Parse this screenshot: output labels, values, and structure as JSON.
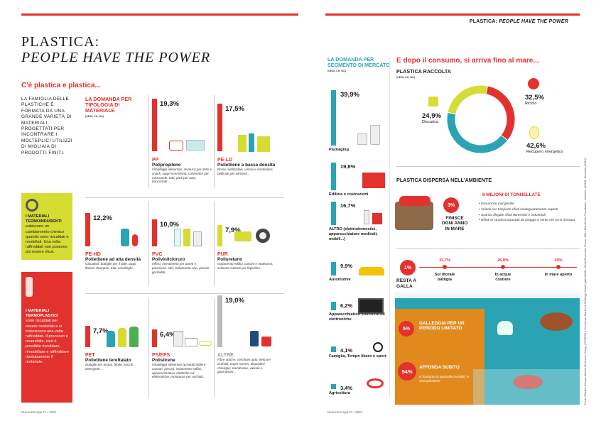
{
  "header": {
    "section_label": "PLASTICA: ",
    "section_label_it": "PEOPLE HAVE THE POWER"
  },
  "title": {
    "line1": "PLASTICA:",
    "line2": "PEOPLE HAVE THE POWER"
  },
  "subtitle_left": "C'è plastica e plastica...",
  "intro_text": "LA FAMIGLIA DELLE PLASTICHE È FORMATA DA UNA GRANDE VARIETÀ DI MATERIALI, PROGETTATI PER INCONTRARE I MOLTEPLICI UTILIZZI DI MIGLIAIA DI PRODOTTI FINITI.",
  "box_thermoset": {
    "bold": "I MATERIALI TERMOINDURENTI",
    "text": "subiscono un cambiamento chimico quando sono riscaldati e modellati. Una volta raffreddati non possono più essere rifusi."
  },
  "box_thermoplastic": {
    "bold": "I MATERIALI TERMOPLASTICI",
    "text": "sono riscaldati per essere modellati e si induriscono una volta raffreddati. Il processo è reversibile, cioè è possibile riscaldare, rimodellare e raffreddare ripetutamente il materiale."
  },
  "demand_by_material": {
    "heading": "LA DOMANDA PER TIPOLOGIA DI MATERIALE",
    "note": "(UE28, CH, NO)",
    "items": [
      {
        "pct": "19,3%",
        "value": 19.3,
        "code": "PP",
        "name": "Polipropilene",
        "desc": "Imballaggi alimentari, involucri per dolci e snack, tappi incernierati, contenitori per microonde, tubi, parti per auto, banconote..."
      },
      {
        "pct": "17,5%",
        "value": 17.5,
        "code": "PE-LD",
        "name": "Polietilene a bassa densità",
        "desc": "Borse riutilizzabili, vassoi e contenitori, pellicole per alimenti..."
      },
      {
        "pct": "12,2%",
        "value": 12.2,
        "code": "PE-HD",
        "name": "Polietilene ad alta densità",
        "desc": "Giocattoli, bottiglie per il latte, tappi, flaconi shampoo, tubi, casalinghi..."
      },
      {
        "pct": "10,0%",
        "value": 10.0,
        "code": "PVC",
        "name": "Polivinilcloruro",
        "desc": "Infissi, rivestimenti per pareti e pavimenti, tubi, isolamento cavi, piscine gonfiabili..."
      },
      {
        "pct": "7,9%",
        "value": 7.9,
        "code": "PUR",
        "name": "Poliuretano",
        "desc": "Isolamento edifici, cuscini e materassi, schiume isolanti per frigoriferi..."
      },
      {
        "pct": "7,7%",
        "value": 7.7,
        "code": "PET",
        "name": "Polietilene tereftalato",
        "desc": "Bottiglie per acqua, bibite, succhi, detergenti..."
      },
      {
        "pct": "6,4%",
        "value": 6.4,
        "code": "PS/EPS",
        "name": "Polistirene",
        "desc": "Imballaggi alimentari (prodotti lattiero-caseari, pesce), isolamento edifici, apparecchiature elettriche ed elettroniche, montature per occhiali..."
      },
      {
        "pct": "19,0%",
        "value": 19.0,
        "code": "ALTRE",
        "name": "",
        "desc": "Fibre ottiche, cerchioni auto, lenti per occhiali, touch screen, dispositivi chirurgici, membrane, valvole e guarnizioni..."
      }
    ]
  },
  "demand_by_sector": {
    "heading": "LA DOMANDA PER SEGMENTO DI MERCATO",
    "note": "(UE28, CH, NO)",
    "items": [
      {
        "pct": "39,9%",
        "value": 39.9,
        "label": "Packaging"
      },
      {
        "pct": "19,8%",
        "value": 19.8,
        "label": "Edilizia e costruzioni"
      },
      {
        "pct": "16,7%",
        "value": 16.7,
        "label": "ALTRO (elettrodomestici, apparecchiature medicali, mobili...)"
      },
      {
        "pct": "9,9%",
        "value": 9.9,
        "label": "Automotive"
      },
      {
        "pct": "6,2%",
        "value": 6.2,
        "label": "Apparecchiature elettriche ed elettroniche"
      },
      {
        "pct": "4,1%",
        "value": 4.1,
        "label": "Famiglia, Tempo libero e sport"
      },
      {
        "pct": "3,4%",
        "value": 3.4,
        "label": "Agricoltura"
      }
    ]
  },
  "right": {
    "title": "E dopo il consumo, si arriva fino al mare...",
    "collected": {
      "heading": "PLASTICA RACCOLTA",
      "note": "(UE28, CH, NO)",
      "slices": [
        {
          "label": "Riciclo",
          "pct": "32,5%",
          "value": 32.5,
          "color": "#e3312d"
        },
        {
          "label": "Recupero energetico",
          "pct": "42,6%",
          "value": 42.6,
          "color": "#2aa4b3"
        },
        {
          "label": "Discarica",
          "pct": "24,9%",
          "value": 24.9,
          "color": "#d5dc32"
        }
      ]
    },
    "dispersed": {
      "heading": "PLASTICA DISPERSA NELL'AMBIENTE",
      "million": "8 MILIONI DI TONNELLATE",
      "pct": "3%",
      "finisce": "FINISCE OGNI ANNO IN MARE",
      "bullets": [
        "Discariche mal gestite",
        "Veicoli per trasporto rifiuti inadeguatamente coperti",
        "Scarico illegale rifiuti domestici e industriali",
        "Rifiuti in strada trasportati da pioggia o vento nei corsi d'acqua"
      ]
    },
    "sea": {
      "float_pct": "1%",
      "float_label": "RESTA A GALLA",
      "stages": [
        {
          "pct": "33,7%",
          "label": "Sul litorale battigia"
        },
        {
          "pct": "26,8%",
          "label": "In acque costiere"
        },
        {
          "pct": "39%",
          "label": "In mare aperto"
        }
      ],
      "limited_pct": "5%",
      "limited_label": "GALLEGGIA PER UN PERIODO LIMITATO",
      "sink_pct": "94%",
      "sink_label": "AFFONDA SUBITO",
      "sink_sub": "si frantuma in particelle invisibili, le microplastiche"
    },
    "source_note": "Fonti: Plastics Europe Market Research Group (PEMRG) e Conversio Market & Strategy GmbH (dati 2018), World Economic Forum, Ellen MacArthur Foundation, Jambeck (2015), Eunomia (2016)"
  },
  "footer_left": "Nuova Energia #1 • 2020",
  "footer_right": "Nuova Energia #1 • 2020"
}
